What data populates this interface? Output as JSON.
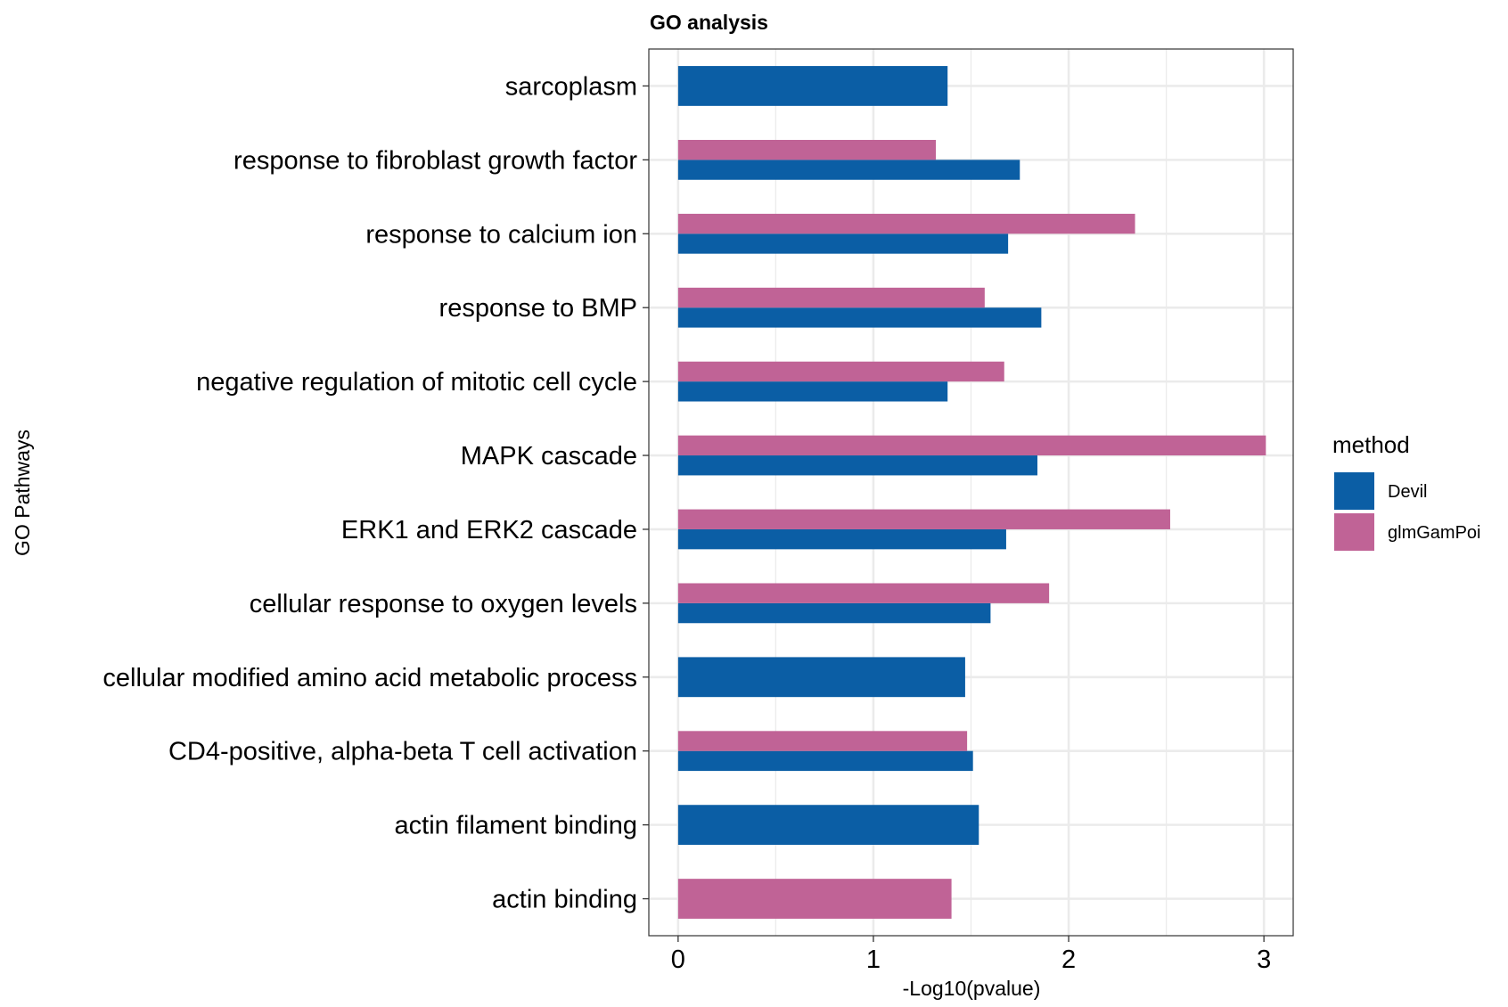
{
  "chart_data": {
    "type": "bar",
    "orientation": "horizontal",
    "title": "GO analysis",
    "xlabel": "-Log10(pvalue)",
    "ylabel": "GO Pathways",
    "xlim": [
      -0.15,
      3.15
    ],
    "x_ticks": [
      0,
      1,
      2,
      3
    ],
    "grid": true,
    "legend_position": "right",
    "legend_title": "method",
    "categories": [
      "sarcoplasm",
      "response to fibroblast growth factor",
      "response to calcium ion",
      "response to BMP",
      "negative regulation of mitotic cell cycle",
      "MAPK cascade",
      "ERK1 and ERK2 cascade",
      "cellular response to oxygen levels",
      "cellular modified amino acid metabolic process",
      "CD4-positive, alpha-beta T cell activation",
      "actin filament binding",
      "actin binding"
    ],
    "series": [
      {
        "name": "Devil",
        "color": "#0B5EA5",
        "values": [
          1.38,
          1.75,
          1.69,
          1.86,
          1.38,
          1.84,
          1.68,
          1.6,
          1.47,
          1.51,
          1.54,
          null
        ]
      },
      {
        "name": "glmGamPoi",
        "color": "#C06396",
        "values": [
          null,
          1.32,
          2.34,
          1.57,
          1.67,
          3.01,
          2.52,
          1.9,
          null,
          1.48,
          null,
          1.4
        ]
      }
    ]
  }
}
